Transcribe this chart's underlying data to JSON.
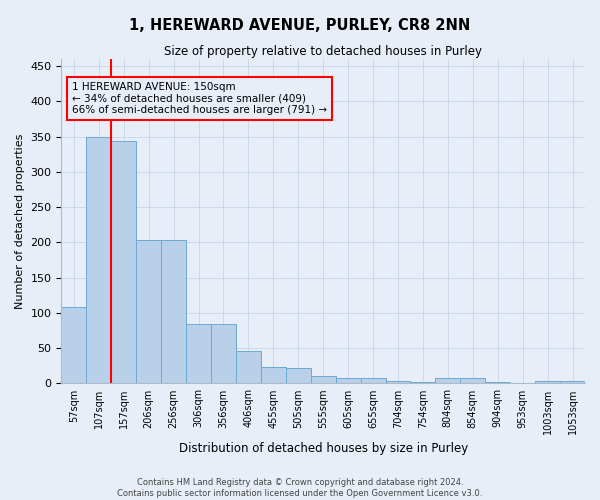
{
  "title": "1, HEREWARD AVENUE, PURLEY, CR8 2NN",
  "subtitle": "Size of property relative to detached houses in Purley",
  "xlabel": "Distribution of detached houses by size in Purley",
  "ylabel": "Number of detached properties",
  "footer_line1": "Contains HM Land Registry data © Crown copyright and database right 2024.",
  "footer_line2": "Contains public sector information licensed under the Open Government Licence v3.0.",
  "bar_color": "#b8d0e8",
  "bar_edge_color": "#6aaad4",
  "grid_color": "#c8d4e8",
  "background_color": "#e8eef8",
  "annotation_text": "1 HEREWARD AVENUE: 150sqm\n← 34% of detached houses are smaller (409)\n66% of semi-detached houses are larger (791) →",
  "annotation_box_color": "red",
  "vline_color": "red",
  "categories": [
    "57sqm",
    "107sqm",
    "157sqm",
    "206sqm",
    "256sqm",
    "306sqm",
    "356sqm",
    "406sqm",
    "455sqm",
    "505sqm",
    "555sqm",
    "605sqm",
    "655sqm",
    "704sqm",
    "754sqm",
    "804sqm",
    "854sqm",
    "904sqm",
    "953sqm",
    "1003sqm",
    "1053sqm"
  ],
  "values": [
    109,
    350,
    344,
    203,
    203,
    84,
    84,
    46,
    24,
    22,
    10,
    8,
    7,
    3,
    2,
    7,
    7,
    2,
    1,
    4,
    4
  ],
  "ylim": [
    0,
    460
  ],
  "yticks": [
    0,
    50,
    100,
    150,
    200,
    250,
    300,
    350,
    400,
    450
  ],
  "vline_x": 1.5
}
